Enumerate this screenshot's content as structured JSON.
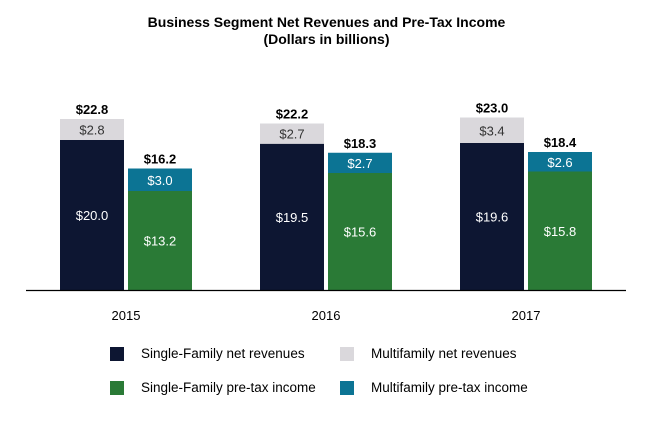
{
  "chart_data": {
    "type": "bar",
    "stacked": true,
    "title": "Business Segment Net Revenues and Pre-Tax Income",
    "subtitle": "(Dollars in billions)",
    "categories": [
      "2015",
      "2016",
      "2017"
    ],
    "groups": [
      {
        "name": "Net revenues",
        "totals": [
          22.8,
          22.2,
          23.0
        ],
        "total_labels": [
          "$22.8",
          "$22.2",
          "$23.0"
        ],
        "series": [
          {
            "name": "Single-Family net revenues",
            "values": [
              20.0,
              19.5,
              19.6
            ],
            "labels": [
              "$20.0",
              "$19.5",
              "$19.6"
            ],
            "color": "#0d1632",
            "label_color": "#ffffff"
          },
          {
            "name": "Multifamily net revenues",
            "values": [
              2.8,
              2.7,
              3.4
            ],
            "labels": [
              "$2.8",
              "$2.7",
              "$3.4"
            ],
            "color": "#dad8dc",
            "label_color": "#333333"
          }
        ]
      },
      {
        "name": "Pre-tax income",
        "totals": [
          16.2,
          18.3,
          18.4
        ],
        "total_labels": [
          "$16.2",
          "$18.3",
          "$18.4"
        ],
        "series": [
          {
            "name": "Single-Family pre-tax income",
            "values": [
              13.2,
              15.6,
              15.8
            ],
            "labels": [
              "$13.2",
              "$15.6",
              "$15.8"
            ],
            "color": "#2a7a36",
            "label_color": "#ffffff"
          },
          {
            "name": "Multifamily pre-tax income",
            "values": [
              3.0,
              2.7,
              2.6
            ],
            "labels": [
              "$3.0",
              "$2.7",
              "$2.6"
            ],
            "color": "#0c7494",
            "label_color": "#ffffff"
          }
        ]
      }
    ],
    "ylim": [
      0,
      25
    ],
    "grid": false,
    "legend_position": "bottom"
  },
  "legend": [
    {
      "label": "Single-Family net revenues",
      "color": "#0d1632"
    },
    {
      "label": "Multifamily net revenues",
      "color": "#dad8dc"
    },
    {
      "label": "Single-Family pre-tax income",
      "color": "#2a7a36"
    },
    {
      "label": "Multifamily pre-tax income",
      "color": "#0c7494"
    }
  ]
}
